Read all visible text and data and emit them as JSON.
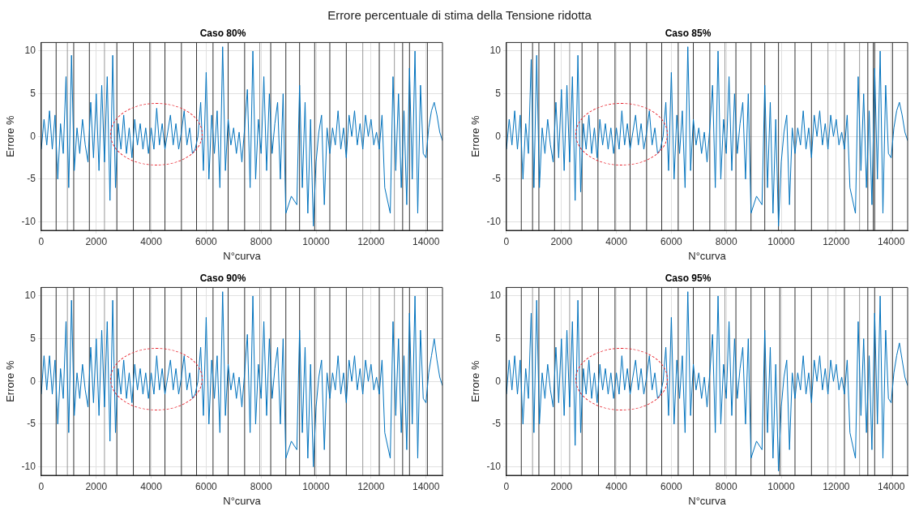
{
  "chart_data": [
    {
      "type": "line",
      "title": "Caso 80%",
      "annotations": [
        "Errore percentuale di stima della Tensione ridotta"
      ],
      "xlabel": "N°curva",
      "ylabel": "Errore %",
      "xlim": [
        0,
        14600
      ],
      "ylim": [
        -11,
        11
      ],
      "xticks": [
        0,
        2000,
        4000,
        6000,
        8000,
        10000,
        12000,
        14000
      ],
      "yticks": [
        -10,
        -5,
        0,
        5,
        10
      ],
      "grid": true,
      "x": [
        0,
        100,
        200,
        300,
        400,
        500,
        600,
        700,
        800,
        900,
        1000,
        1100,
        1200,
        1300,
        1400,
        1500,
        1600,
        1700,
        1800,
        1900,
        2000,
        2100,
        2200,
        2300,
        2400,
        2500,
        2600,
        2700,
        2800,
        2900,
        3000,
        3100,
        3200,
        3300,
        3400,
        3500,
        3600,
        3700,
        3800,
        3900,
        4000,
        4100,
        4200,
        4300,
        4400,
        4500,
        4600,
        4700,
        4800,
        4900,
        5000,
        5100,
        5200,
        5300,
        5400,
        5500,
        5600,
        5700,
        5800,
        5900,
        6000,
        6100,
        6200,
        6300,
        6400,
        6500,
        6600,
        6700,
        6800,
        6900,
        7000,
        7100,
        7200,
        7300,
        7400,
        7500,
        7600,
        7700,
        7800,
        7900,
        8000,
        8100,
        8200,
        8300,
        8400,
        8500,
        8600,
        8700,
        8800,
        8900,
        9000,
        9100,
        9200,
        9300,
        9400,
        9500,
        9600,
        9700,
        9800,
        9900,
        10000,
        10100,
        10200,
        10300,
        10400,
        10500,
        10600,
        10700,
        10800,
        10900,
        11000,
        11100,
        11200,
        11300,
        11400,
        11500,
        11600,
        11700,
        11800,
        11900,
        12000,
        12100,
        12200,
        12300,
        12400,
        12500,
        12600,
        12700,
        12800,
        12900,
        13000,
        13100,
        13200,
        13300,
        13400,
        13500,
        13600,
        13700,
        13800,
        13900,
        14000,
        14100,
        14200,
        14300,
        14400,
        14500,
        14600
      ],
      "series": [
        {
          "color": "#0072bd",
          "values": [
            -1.5,
            2,
            -1,
            3,
            -1.5,
            2.5,
            -5,
            1.5,
            -2,
            7,
            -6,
            9.5,
            -4,
            1,
            -2,
            2,
            -1,
            -3,
            4,
            -2.5,
            5,
            -4,
            6,
            -3,
            7,
            -7.5,
            9.5,
            -6,
            1.5,
            -1.5,
            2.5,
            -2,
            1,
            -2.5,
            2,
            -1,
            1.5,
            -1.5,
            1,
            -2,
            1,
            -1.5,
            3.3,
            -1,
            1.5,
            -1.5,
            0.5,
            2.5,
            -1,
            1.5,
            -1.5,
            0.5,
            3,
            -1,
            1,
            -2,
            -1.5,
            0,
            4,
            -4,
            7.5,
            -5,
            2.5,
            -2,
            3,
            -6,
            10.5,
            -4,
            2,
            -1,
            1,
            -2,
            0.5,
            -3,
            1,
            5.5,
            -6,
            10,
            -5,
            2,
            -2,
            7,
            -4,
            5,
            -2,
            1.5,
            4,
            -5,
            5,
            -9,
            null,
            -7,
            null,
            -8,
            6,
            -6,
            4,
            -9,
            2,
            -10.5,
            -3,
            0.5,
            2.5,
            -8,
            1,
            -2,
            1,
            -1,
            3,
            -1.5,
            1,
            -2.5,
            2.5,
            0,
            3,
            -1,
            1.5,
            -1.5,
            2.5,
            0,
            2,
            -1,
            0.5,
            -1.5,
            2.5,
            -6,
            null,
            -9,
            7,
            -4,
            5,
            -6,
            3,
            -8,
            8,
            -5,
            10,
            -9,
            6,
            -2,
            -2.5,
            1,
            3,
            4,
            2.5,
            0.5,
            -0.5
          ]
        }
      ],
      "ref_lines": [
        {
          "axis": "x",
          "value": 540,
          "color": "#333333"
        },
        {
          "axis": "x",
          "value": 950,
          "color": "#999999"
        },
        {
          "axis": "x",
          "value": 1180,
          "color": "#333333"
        },
        {
          "axis": "x",
          "value": 1750,
          "color": "#333333"
        },
        {
          "axis": "x",
          "value": 2300,
          "color": "#999999"
        },
        {
          "axis": "x",
          "value": 2750,
          "color": "#333333"
        },
        {
          "axis": "x",
          "value": 3350,
          "color": "#333333"
        },
        {
          "axis": "x",
          "value": 3950,
          "color": "#333333"
        },
        {
          "axis": "x",
          "value": 4500,
          "color": "#333333"
        },
        {
          "axis": "x",
          "value": 5100,
          "color": "#333333"
        },
        {
          "axis": "x",
          "value": 5650,
          "color": "#333333"
        },
        {
          "axis": "x",
          "value": 6250,
          "color": "#333333"
        },
        {
          "axis": "x",
          "value": 6800,
          "color": "#333333"
        },
        {
          "axis": "x",
          "value": 7400,
          "color": "#333333"
        },
        {
          "axis": "x",
          "value": 7950,
          "color": "#999999"
        },
        {
          "axis": "x",
          "value": 8350,
          "color": "#333333"
        },
        {
          "axis": "x",
          "value": 8900,
          "color": "#333333"
        },
        {
          "axis": "x",
          "value": 9400,
          "color": "#333333"
        },
        {
          "axis": "x",
          "value": 9950,
          "color": "#333333"
        },
        {
          "axis": "x",
          "value": 10500,
          "color": "#333333"
        },
        {
          "axis": "x",
          "value": 11100,
          "color": "#333333"
        },
        {
          "axis": "x",
          "value": 11700,
          "color": "#999999"
        },
        {
          "axis": "x",
          "value": 12300,
          "color": "#333333"
        },
        {
          "axis": "x",
          "value": 12850,
          "color": "#999999"
        },
        {
          "axis": "x",
          "value": 13150,
          "color": "#333333"
        },
        {
          "axis": "x",
          "value": 13400,
          "color": "#333333"
        },
        {
          "axis": "x",
          "value": 14050,
          "color": "#333333"
        }
      ]
    },
    {
      "type": "line",
      "title": "Caso 85%",
      "xlabel": "N°curva",
      "ylabel": "Errore %",
      "xlim": [
        0,
        14600
      ],
      "ylim": [
        -11,
        11
      ],
      "xticks": [
        0,
        2000,
        4000,
        6000,
        8000,
        10000,
        12000,
        14000
      ],
      "yticks": [
        -10,
        -5,
        0,
        5,
        10
      ],
      "grid": true,
      "x": [
        0,
        100,
        200,
        300,
        400,
        500,
        600,
        700,
        800,
        900,
        1000,
        1100,
        1200,
        1300,
        1400,
        1500,
        1600,
        1700,
        1800,
        1900,
        2000,
        2100,
        2200,
        2300,
        2400,
        2500,
        2600,
        2700,
        2800,
        2900,
        3000,
        3100,
        3200,
        3300,
        3400,
        3500,
        3600,
        3700,
        3800,
        3900,
        4000,
        4100,
        4200,
        4300,
        4400,
        4500,
        4600,
        4700,
        4800,
        4900,
        5000,
        5100,
        5200,
        5300,
        5400,
        5500,
        5600,
        5700,
        5800,
        5900,
        6000,
        6100,
        6200,
        6300,
        6400,
        6500,
        6600,
        6700,
        6800,
        6900,
        7000,
        7100,
        7200,
        7300,
        7400,
        7500,
        7600,
        7700,
        7800,
        7900,
        8000,
        8100,
        8200,
        8300,
        8400,
        8500,
        8600,
        8700,
        8800,
        8900,
        9000,
        9100,
        9200,
        9300,
        9400,
        9500,
        9600,
        9700,
        9800,
        9900,
        10000,
        10100,
        10200,
        10300,
        10400,
        10500,
        10600,
        10700,
        10800,
        10900,
        11000,
        11100,
        11200,
        11300,
        11400,
        11500,
        11600,
        11700,
        11800,
        11900,
        12000,
        12100,
        12200,
        12300,
        12400,
        12500,
        12600,
        12700,
        12800,
        12900,
        13000,
        13100,
        13200,
        13300,
        13400,
        13500,
        13600,
        13700,
        13800,
        13900,
        14000,
        14100,
        14200,
        14300,
        14400,
        14500,
        14600
      ],
      "series": [
        {
          "color": "#0072bd",
          "values": [
            -1.5,
            2,
            -1,
            3,
            -1.5,
            2.5,
            -5,
            1.5,
            -2,
            9,
            -6,
            9.5,
            -6,
            1,
            -2,
            2,
            -1,
            -3,
            4,
            -2.5,
            5.5,
            -4,
            6,
            -3,
            7,
            -7.5,
            9.5,
            -6.5,
            1.5,
            -1.5,
            2.5,
            -2,
            1,
            -2.5,
            2,
            -1,
            1.5,
            -1.5,
            1,
            -2,
            1,
            -1.5,
            3,
            -1,
            1.5,
            -1.5,
            0.5,
            2.5,
            -1,
            1.5,
            -1.5,
            0.5,
            3,
            -1,
            1,
            -2,
            -1.5,
            0,
            4,
            -4,
            7.5,
            -5,
            2.5,
            -2,
            3,
            -6,
            10.5,
            -4,
            2,
            -1,
            1,
            -2,
            0.5,
            -3,
            1,
            6,
            -6,
            10,
            -5,
            2,
            -2,
            7,
            -4,
            5,
            -2,
            1.5,
            4,
            -5,
            5,
            -9,
            null,
            -7,
            null,
            -8,
            6,
            -6,
            4,
            -9,
            2,
            -10.5,
            -3,
            0.5,
            2.5,
            -8,
            1,
            -2,
            1,
            -1,
            3,
            -1.5,
            1,
            -2.5,
            2.5,
            0,
            3,
            -1,
            1.5,
            -1.5,
            2.5,
            0,
            2,
            -1,
            0.5,
            -1.5,
            2.5,
            -6,
            null,
            -9,
            7,
            -4,
            5,
            -6,
            3,
            -8,
            8,
            -5,
            10,
            -9,
            6,
            -2,
            -2.5,
            1,
            3,
            4,
            2.5,
            0.5,
            -0.5
          ]
        }
      ],
      "ref_lines": [
        {
          "axis": "x",
          "value": 540,
          "color": "#333333"
        },
        {
          "axis": "x",
          "value": 950,
          "color": "#333333"
        },
        {
          "axis": "x",
          "value": 1180,
          "color": "#333333"
        },
        {
          "axis": "x",
          "value": 1750,
          "color": "#333333"
        },
        {
          "axis": "x",
          "value": 2300,
          "color": "#999999"
        },
        {
          "axis": "x",
          "value": 2750,
          "color": "#333333"
        },
        {
          "axis": "x",
          "value": 3330,
          "color": "#333333"
        },
        {
          "axis": "x",
          "value": 3950,
          "color": "#333333"
        },
        {
          "axis": "x",
          "value": 4500,
          "color": "#333333"
        },
        {
          "axis": "x",
          "value": 5100,
          "color": "#333333"
        },
        {
          "axis": "x",
          "value": 5650,
          "color": "#333333"
        },
        {
          "axis": "x",
          "value": 6250,
          "color": "#333333"
        },
        {
          "axis": "x",
          "value": 6800,
          "color": "#333333"
        },
        {
          "axis": "x",
          "value": 7400,
          "color": "#333333"
        },
        {
          "axis": "x",
          "value": 7950,
          "color": "#999999"
        },
        {
          "axis": "x",
          "value": 8350,
          "color": "#333333"
        },
        {
          "axis": "x",
          "value": 8900,
          "color": "#333333"
        },
        {
          "axis": "x",
          "value": 9400,
          "color": "#333333"
        },
        {
          "axis": "x",
          "value": 9900,
          "color": "#333333"
        },
        {
          "axis": "x",
          "value": 10500,
          "color": "#333333"
        },
        {
          "axis": "x",
          "value": 11100,
          "color": "#333333"
        },
        {
          "axis": "x",
          "value": 11700,
          "color": "#999999"
        },
        {
          "axis": "x",
          "value": 12300,
          "color": "#333333"
        },
        {
          "axis": "x",
          "value": 12850,
          "color": "#999999"
        },
        {
          "axis": "x",
          "value": 13150,
          "color": "#333333"
        },
        {
          "axis": "x",
          "value": 13350,
          "color": "#333333"
        },
        {
          "axis": "x",
          "value": 13400,
          "color": "#333333"
        },
        {
          "axis": "x",
          "value": 14050,
          "color": "#333333"
        }
      ]
    },
    {
      "type": "line",
      "title": "Caso 90%",
      "xlabel": "N°curva",
      "ylabel": "Errore %",
      "xlim": [
        0,
        14600
      ],
      "ylim": [
        -11,
        11
      ],
      "xticks": [
        0,
        2000,
        4000,
        6000,
        8000,
        10000,
        12000,
        14000
      ],
      "yticks": [
        -10,
        -5,
        0,
        5,
        10
      ],
      "grid": true,
      "x": [
        0,
        100,
        200,
        300,
        400,
        500,
        600,
        700,
        800,
        900,
        1000,
        1100,
        1200,
        1300,
        1400,
        1500,
        1600,
        1700,
        1800,
        1900,
        2000,
        2100,
        2200,
        2300,
        2400,
        2500,
        2600,
        2700,
        2800,
        2900,
        3000,
        3100,
        3200,
        3300,
        3400,
        3500,
        3600,
        3700,
        3800,
        3900,
        4000,
        4100,
        4200,
        4300,
        4400,
        4500,
        4600,
        4700,
        4800,
        4900,
        5000,
        5100,
        5200,
        5300,
        5400,
        5500,
        5600,
        5700,
        5800,
        5900,
        6000,
        6100,
        6200,
        6300,
        6400,
        6500,
        6600,
        6700,
        6800,
        6900,
        7000,
        7100,
        7200,
        7300,
        7400,
        7500,
        7600,
        7700,
        7800,
        7900,
        8000,
        8100,
        8200,
        8300,
        8400,
        8500,
        8600,
        8700,
        8800,
        8900,
        9000,
        9100,
        9200,
        9300,
        9400,
        9500,
        9600,
        9700,
        9800,
        9900,
        10000,
        10100,
        10200,
        10300,
        10400,
        10500,
        10600,
        10700,
        10800,
        10900,
        11000,
        11100,
        11200,
        11300,
        11400,
        11500,
        11600,
        11700,
        11800,
        11900,
        12000,
        12100,
        12200,
        12300,
        12400,
        12500,
        12600,
        12700,
        12800,
        12900,
        13000,
        13100,
        13200,
        13300,
        13400,
        13500,
        13600,
        13700,
        13800,
        13900,
        14000,
        14100,
        14200,
        14300,
        14400,
        14500,
        14600
      ],
      "series": [
        {
          "color": "#0072bd",
          "values": [
            -1.5,
            3,
            -1,
            3,
            -1.5,
            2.5,
            -5,
            1.5,
            -2,
            7,
            -6,
            9.5,
            -4,
            1,
            -2,
            2,
            -1,
            -3,
            4,
            -2.5,
            5,
            -4,
            6,
            -3,
            7,
            -7,
            9.5,
            -6,
            1.5,
            -1.5,
            2.5,
            -2,
            1,
            -2.5,
            2,
            -1,
            1.5,
            -1.5,
            1,
            -2,
            1,
            -1.5,
            3,
            -1,
            1.5,
            -1.5,
            0.5,
            2.5,
            -1,
            1.5,
            -1.5,
            0.5,
            3,
            -1,
            1,
            -2,
            -1.5,
            0,
            4,
            -4,
            7.5,
            -5,
            2.5,
            -2,
            3,
            -6,
            10.5,
            -4,
            2,
            -1,
            1,
            -2,
            0.5,
            -3,
            1,
            5.5,
            -6,
            10,
            -5,
            2,
            -2,
            7,
            -4,
            5,
            -2,
            1.5,
            4,
            -5,
            5,
            -9,
            null,
            -7,
            null,
            -8,
            6,
            -6,
            4,
            -9,
            2,
            -10,
            -3,
            0.5,
            2.5,
            -8,
            1,
            -2,
            1,
            -1,
            3,
            -1.5,
            1,
            -2.5,
            2.5,
            0,
            3,
            -1,
            1.5,
            -1.5,
            2.5,
            0,
            2,
            -1,
            0.5,
            -1.5,
            2.5,
            -6,
            null,
            -9,
            7,
            -4,
            5,
            -6,
            3,
            -8,
            8,
            -5,
            10,
            -9,
            6,
            -2,
            -2.5,
            1,
            3,
            5,
            2.5,
            0.5,
            -0.5
          ]
        }
      ],
      "ref_lines": [
        {
          "axis": "x",
          "value": 540,
          "color": "#333333"
        },
        {
          "axis": "x",
          "value": 950,
          "color": "#999999"
        },
        {
          "axis": "x",
          "value": 1180,
          "color": "#333333"
        },
        {
          "axis": "x",
          "value": 1750,
          "color": "#333333"
        },
        {
          "axis": "x",
          "value": 2300,
          "color": "#999999"
        },
        {
          "axis": "x",
          "value": 2750,
          "color": "#333333"
        },
        {
          "axis": "x",
          "value": 3350,
          "color": "#333333"
        },
        {
          "axis": "x",
          "value": 3950,
          "color": "#333333"
        },
        {
          "axis": "x",
          "value": 4500,
          "color": "#333333"
        },
        {
          "axis": "x",
          "value": 5100,
          "color": "#333333"
        },
        {
          "axis": "x",
          "value": 5650,
          "color": "#333333"
        },
        {
          "axis": "x",
          "value": 6250,
          "color": "#333333"
        },
        {
          "axis": "x",
          "value": 6800,
          "color": "#333333"
        },
        {
          "axis": "x",
          "value": 7400,
          "color": "#333333"
        },
        {
          "axis": "x",
          "value": 7950,
          "color": "#999999"
        },
        {
          "axis": "x",
          "value": 8350,
          "color": "#333333"
        },
        {
          "axis": "x",
          "value": 8900,
          "color": "#333333"
        },
        {
          "axis": "x",
          "value": 9400,
          "color": "#333333"
        },
        {
          "axis": "x",
          "value": 9950,
          "color": "#333333"
        },
        {
          "axis": "x",
          "value": 10500,
          "color": "#333333"
        },
        {
          "axis": "x",
          "value": 11100,
          "color": "#333333"
        },
        {
          "axis": "x",
          "value": 11700,
          "color": "#999999"
        },
        {
          "axis": "x",
          "value": 12300,
          "color": "#333333"
        },
        {
          "axis": "x",
          "value": 12850,
          "color": "#999999"
        },
        {
          "axis": "x",
          "value": 13150,
          "color": "#333333"
        },
        {
          "axis": "x",
          "value": 13400,
          "color": "#333333"
        },
        {
          "axis": "x",
          "value": 14050,
          "color": "#333333"
        }
      ]
    },
    {
      "type": "line",
      "title": "Caso 95%",
      "xlabel": "N°curva",
      "ylabel": "Errore %",
      "xlim": [
        0,
        14600
      ],
      "ylim": [
        -11,
        11
      ],
      "xticks": [
        0,
        2000,
        4000,
        6000,
        8000,
        10000,
        12000,
        14000
      ],
      "yticks": [
        -10,
        -5,
        0,
        5,
        10
      ],
      "grid": true,
      "x": [
        0,
        100,
        200,
        300,
        400,
        500,
        600,
        700,
        800,
        900,
        1000,
        1100,
        1200,
        1300,
        1400,
        1500,
        1600,
        1700,
        1800,
        1900,
        2000,
        2100,
        2200,
        2300,
        2400,
        2500,
        2600,
        2700,
        2800,
        2900,
        3000,
        3100,
        3200,
        3300,
        3400,
        3500,
        3600,
        3700,
        3800,
        3900,
        4000,
        4100,
        4200,
        4300,
        4400,
        4500,
        4600,
        4700,
        4800,
        4900,
        5000,
        5100,
        5200,
        5300,
        5400,
        5500,
        5600,
        5700,
        5800,
        5900,
        6000,
        6100,
        6200,
        6300,
        6400,
        6500,
        6600,
        6700,
        6800,
        6900,
        7000,
        7100,
        7200,
        7300,
        7400,
        7500,
        7600,
        7700,
        7800,
        7900,
        8000,
        8100,
        8200,
        8300,
        8400,
        8500,
        8600,
        8700,
        8800,
        8900,
        9000,
        9100,
        9200,
        9300,
        9400,
        9500,
        9600,
        9700,
        9800,
        9900,
        10000,
        10100,
        10200,
        10300,
        10400,
        10500,
        10600,
        10700,
        10800,
        10900,
        11000,
        11100,
        11200,
        11300,
        11400,
        11500,
        11600,
        11700,
        11800,
        11900,
        12000,
        12100,
        12200,
        12300,
        12400,
        12500,
        12600,
        12700,
        12800,
        12900,
        13000,
        13100,
        13200,
        13300,
        13400,
        13500,
        13600,
        13700,
        13800,
        13900,
        14000,
        14100,
        14200,
        14300,
        14400,
        14500,
        14600
      ],
      "series": [
        {
          "color": "#0072bd",
          "values": [
            -1.5,
            2.5,
            -1,
            3,
            -1.5,
            2.5,
            -5,
            1.5,
            -2,
            8,
            -6,
            9.5,
            -5,
            1,
            -2,
            2,
            -1,
            -3,
            4,
            -2.5,
            5,
            -4,
            6,
            -3,
            7,
            -7.5,
            9.5,
            -6,
            1.5,
            -1.5,
            2.5,
            -2,
            1,
            -2.5,
            2,
            -1,
            1.5,
            -1.5,
            1,
            -2,
            1,
            -1.5,
            3,
            -1,
            1.5,
            -1.5,
            0.5,
            2.5,
            -1,
            1.5,
            -1.5,
            0.5,
            3,
            -1,
            1,
            -2,
            -1.5,
            0,
            4,
            -4,
            7.5,
            -5,
            2.5,
            -2,
            3,
            -6,
            10.5,
            -4,
            2,
            -1,
            1,
            -2,
            0.5,
            -3,
            1,
            5.5,
            -6,
            10,
            -5,
            2,
            -2,
            7,
            -4,
            5,
            -2,
            1.5,
            4,
            -5,
            5,
            -9,
            null,
            -7,
            null,
            -8,
            6,
            -6,
            4,
            -9,
            2,
            -10.5,
            -3,
            0.5,
            2.5,
            -8,
            1,
            -2,
            1,
            -1,
            3,
            -1.5,
            1,
            -2.5,
            2.5,
            0,
            3,
            -1,
            1.5,
            -1.5,
            2.5,
            0,
            2,
            -1,
            0.5,
            -1.5,
            2.5,
            -6,
            null,
            -9,
            7,
            -4,
            5,
            -6,
            3,
            -8,
            8,
            -5,
            10,
            -9,
            6,
            -2,
            -2.5,
            1,
            3,
            4.5,
            2.5,
            0.5,
            -0.5
          ]
        }
      ],
      "ref_lines": [
        {
          "axis": "x",
          "value": 540,
          "color": "#333333"
        },
        {
          "axis": "x",
          "value": 950,
          "color": "#999999"
        },
        {
          "axis": "x",
          "value": 1180,
          "color": "#333333"
        },
        {
          "axis": "x",
          "value": 1750,
          "color": "#333333"
        },
        {
          "axis": "x",
          "value": 2300,
          "color": "#999999"
        },
        {
          "axis": "x",
          "value": 2750,
          "color": "#333333"
        },
        {
          "axis": "x",
          "value": 3350,
          "color": "#333333"
        },
        {
          "axis": "x",
          "value": 3950,
          "color": "#333333"
        },
        {
          "axis": "x",
          "value": 4500,
          "color": "#333333"
        },
        {
          "axis": "x",
          "value": 5100,
          "color": "#333333"
        },
        {
          "axis": "x",
          "value": 5650,
          "color": "#333333"
        },
        {
          "axis": "x",
          "value": 6250,
          "color": "#333333"
        },
        {
          "axis": "x",
          "value": 6800,
          "color": "#333333"
        },
        {
          "axis": "x",
          "value": 7400,
          "color": "#333333"
        },
        {
          "axis": "x",
          "value": 7950,
          "color": "#999999"
        },
        {
          "axis": "x",
          "value": 8350,
          "color": "#333333"
        },
        {
          "axis": "x",
          "value": 8900,
          "color": "#333333"
        },
        {
          "axis": "x",
          "value": 9400,
          "color": "#333333"
        },
        {
          "axis": "x",
          "value": 9950,
          "color": "#333333"
        },
        {
          "axis": "x",
          "value": 10500,
          "color": "#333333"
        },
        {
          "axis": "x",
          "value": 11100,
          "color": "#333333"
        },
        {
          "axis": "x",
          "value": 11700,
          "color": "#999999"
        },
        {
          "axis": "x",
          "value": 12300,
          "color": "#333333"
        },
        {
          "axis": "x",
          "value": 12850,
          "color": "#999999"
        },
        {
          "axis": "x",
          "value": 13150,
          "color": "#333333"
        },
        {
          "axis": "x",
          "value": 13400,
          "color": "#333333"
        },
        {
          "axis": "x",
          "value": 14050,
          "color": "#333333"
        }
      ]
    }
  ]
}
